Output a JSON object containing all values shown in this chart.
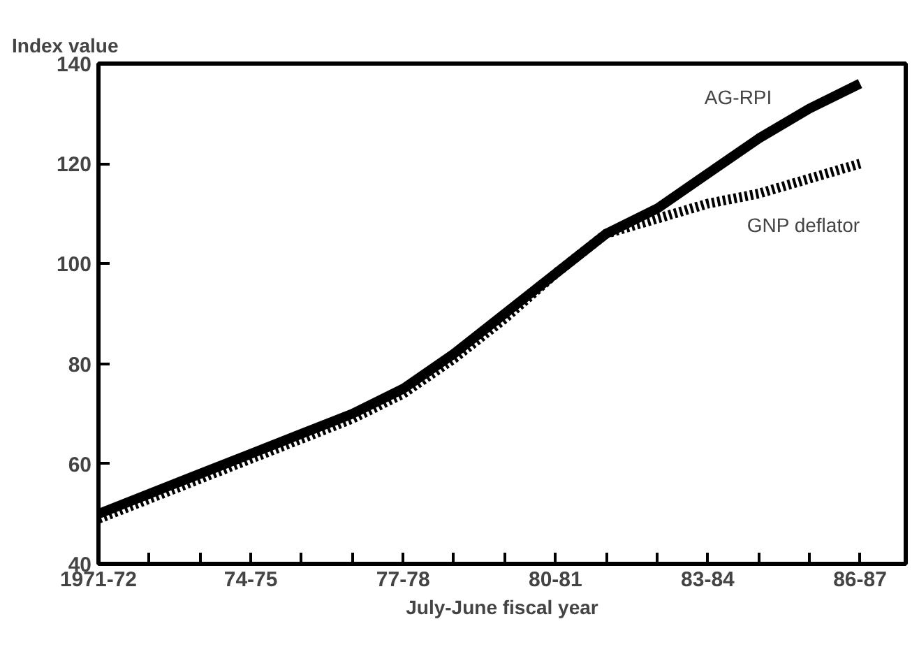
{
  "chart_data": {
    "type": "line",
    "ylabel": "Index value",
    "xlabel": "July-June fiscal year",
    "categories": [
      "1971-72",
      null,
      null,
      "74-75",
      null,
      null,
      "77-78",
      null,
      null,
      "80-81",
      null,
      null,
      "83-84",
      null,
      null,
      "86-87"
    ],
    "ylim": [
      40,
      140
    ],
    "yticks": [
      40,
      60,
      80,
      100,
      120,
      140
    ],
    "grid": false,
    "series": [
      {
        "name": "AG-RPI",
        "color": "#000000",
        "line_style": "solid",
        "values": [
          50,
          54,
          58,
          62,
          66,
          70,
          75,
          82,
          90,
          98,
          106,
          111,
          118,
          125,
          131,
          136
        ]
      },
      {
        "name": "GNP deflator",
        "color": "#000000",
        "line_style": "dotted",
        "values": [
          49,
          53,
          57,
          61,
          65,
          69,
          74,
          81,
          89,
          98,
          106,
          109,
          112,
          114,
          117,
          120
        ]
      }
    ]
  }
}
